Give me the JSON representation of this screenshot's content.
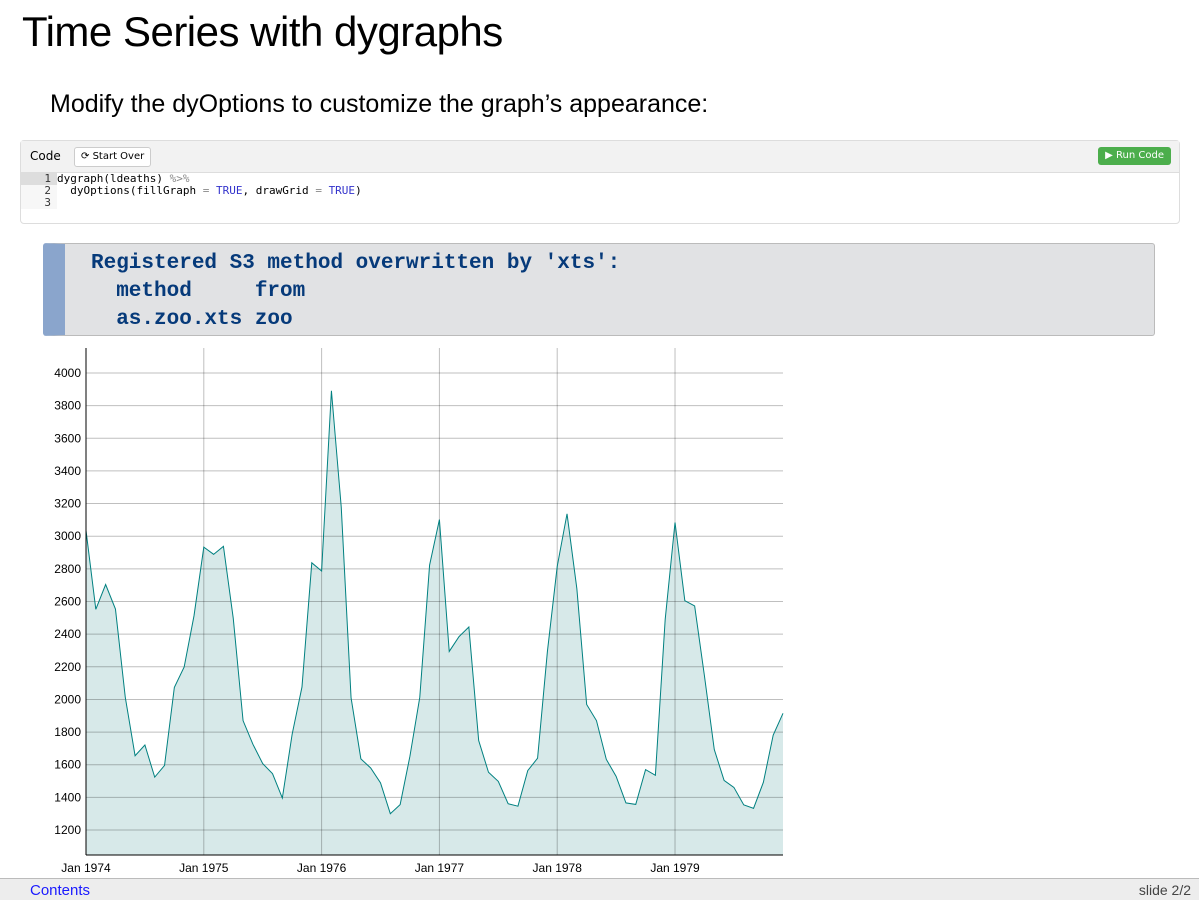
{
  "title": "Time Series with dygraphs",
  "subtitle": "Modify the dyOptions to customize the graph’s appearance:",
  "exercise": {
    "label": "Code",
    "start_over": "Start Over",
    "run": "Run Code",
    "lines": [
      {
        "n": "1"
      },
      {
        "n": "2"
      },
      {
        "n": "3"
      }
    ],
    "code": {
      "l1a": "dygraph(ldeaths) ",
      "l1b": "%>%",
      "l2a": "  dyOptions(fillGraph ",
      "eq": "=",
      "t1": "TRUE",
      "l2b": ", drawGrid ",
      "t2": "TRUE",
      "l2c": ")"
    }
  },
  "output": "Registered S3 method overwritten by 'xts':\n  method     from\n  as.zoo.xts zoo",
  "footer": {
    "contents": "Contents",
    "slide": "slide 2/2"
  },
  "colors": {
    "line": "#008080",
    "fill": "#d7e9e9",
    "run": "#4cae4c"
  },
  "chart_data": {
    "type": "area",
    "x_start": "Jan 1974",
    "frequency": "monthly",
    "xticks": [
      "Jan 1974",
      "Jan 1975",
      "Jan 1976",
      "Jan 1977",
      "Jan 1978",
      "Jan 1979"
    ],
    "yticks": [
      1200,
      1400,
      1600,
      1800,
      2000,
      2200,
      2400,
      2600,
      2800,
      3000,
      3200,
      3400,
      3600,
      3800,
      4000
    ],
    "ylim": [
      1047,
      4153
    ],
    "grid": true,
    "values": [
      3035,
      2552,
      2704,
      2554,
      2014,
      1655,
      1721,
      1524,
      1596,
      2074,
      2199,
      2512,
      2933,
      2889,
      2938,
      2497,
      1870,
      1726,
      1607,
      1545,
      1396,
      1787,
      2076,
      2837,
      2787,
      3891,
      3179,
      2011,
      1636,
      1580,
      1489,
      1300,
      1356,
      1653,
      2013,
      2823,
      3102,
      2294,
      2385,
      2444,
      1748,
      1554,
      1498,
      1361,
      1346,
      1564,
      1640,
      2293,
      2815,
      3137,
      2679,
      1969,
      1870,
      1633,
      1529,
      1366,
      1357,
      1570,
      1535,
      2491,
      3084,
      2605,
      2573,
      2143,
      1693,
      1504,
      1461,
      1354,
      1333,
      1492,
      1781,
      1915
    ]
  }
}
